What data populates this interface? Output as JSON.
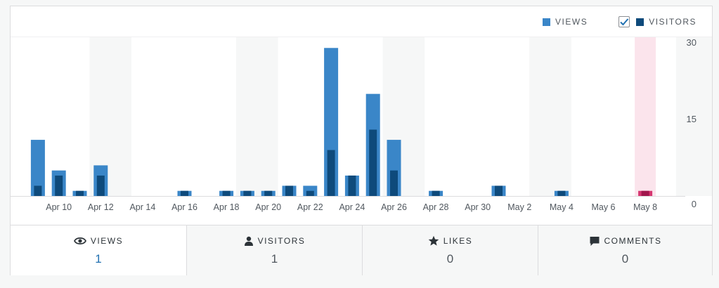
{
  "legend": {
    "views_label": "VIEWS",
    "visitors_label": "VISITORS",
    "views_color": "#3a86c8",
    "visitors_color": "#0e4a7b",
    "visitors_checked": true
  },
  "chart_data": {
    "type": "bar",
    "categories": [
      "Apr 9",
      "Apr 10",
      "Apr 11",
      "Apr 12",
      "Apr 13",
      "Apr 14",
      "Apr 15",
      "Apr 16",
      "Apr 17",
      "Apr 18",
      "Apr 19",
      "Apr 20",
      "Apr 21",
      "Apr 22",
      "Apr 23",
      "Apr 24",
      "Apr 25",
      "Apr 26",
      "Apr 27",
      "Apr 28",
      "Apr 29",
      "Apr 30",
      "May 1",
      "May 2",
      "May 3",
      "May 4",
      "May 5",
      "May 6",
      "May 7",
      "May 8",
      "May 9"
    ],
    "x_tick_labels": [
      "Apr 10",
      "Apr 12",
      "Apr 14",
      "Apr 16",
      "Apr 18",
      "Apr 20",
      "Apr 22",
      "Apr 24",
      "Apr 26",
      "Apr 28",
      "Apr 30",
      "May 2",
      "May 4",
      "May 6",
      "May 8"
    ],
    "series": [
      {
        "name": "VIEWS",
        "values": [
          11,
          5,
          1,
          6,
          0,
          0,
          0,
          1,
          0,
          1,
          1,
          1,
          2,
          2,
          29,
          4,
          20,
          11,
          0,
          1,
          0,
          0,
          2,
          0,
          0,
          1,
          0,
          0,
          0,
          1,
          0
        ]
      },
      {
        "name": "VISITORS",
        "values": [
          2,
          4,
          1,
          4,
          0,
          0,
          0,
          1,
          0,
          1,
          1,
          1,
          2,
          1,
          9,
          4,
          13,
          5,
          0,
          1,
          0,
          0,
          2,
          0,
          0,
          1,
          0,
          0,
          0,
          1,
          0
        ]
      }
    ],
    "y_ticks": [
      0,
      15,
      30
    ],
    "ylim": [
      0,
      30
    ],
    "highlight_category": "May 8",
    "highlight_color": "#fbe4ec",
    "highlight_bar_color": "#d63670",
    "highlight_bar_dark": "#a1164c",
    "grid": false,
    "legend_position": "top-right"
  },
  "tabs": [
    {
      "label": "VIEWS",
      "icon": "eye-icon",
      "value": "1",
      "active": true
    },
    {
      "label": "VISITORS",
      "icon": "person-icon",
      "value": "1",
      "active": false
    },
    {
      "label": "LIKES",
      "icon": "star-icon",
      "value": "0",
      "active": false
    },
    {
      "label": "COMMENTS",
      "icon": "comment-icon",
      "value": "0",
      "active": false
    }
  ]
}
